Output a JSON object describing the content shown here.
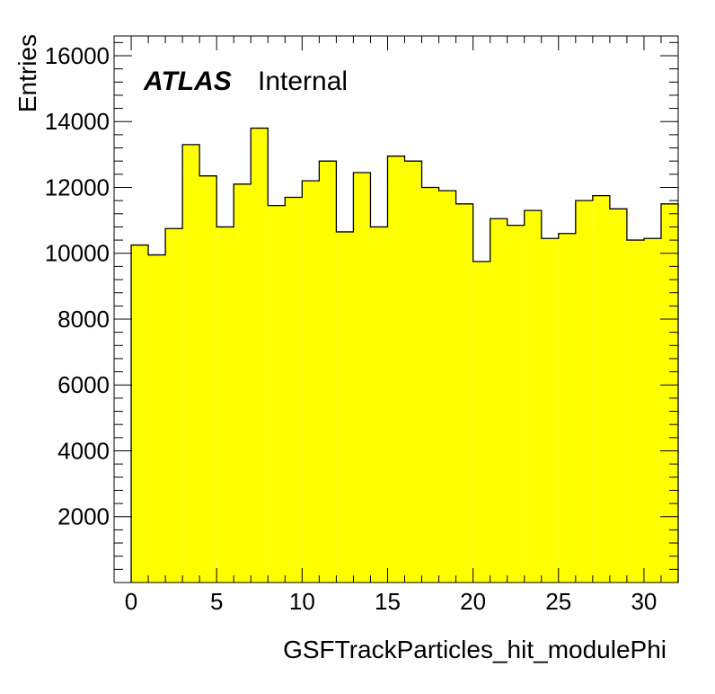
{
  "chart_data": {
    "type": "bar",
    "subtype": "histogram",
    "xlabel": "GSFTrackParticles_hit_modulePhi",
    "ylabel": "Entries",
    "label_bold": "ATLAS",
    "label_status": "Internal",
    "xlim": [
      -1,
      32
    ],
    "ylim": [
      0,
      16600
    ],
    "x_ticks": [
      0,
      5,
      10,
      15,
      20,
      25,
      30
    ],
    "y_ticks": [
      2000,
      4000,
      6000,
      8000,
      10000,
      12000,
      14000,
      16000
    ],
    "bin_edges_start": 0,
    "bin_width": 1,
    "values": [
      10250,
      9950,
      10750,
      13300,
      12350,
      10800,
      12100,
      13800,
      11450,
      11700,
      12200,
      12800,
      10650,
      12450,
      10800,
      12950,
      12800,
      12000,
      11900,
      11500,
      9750,
      11050,
      10850,
      11300,
      10450,
      10600,
      11600,
      11750,
      11350,
      10400,
      10450,
      11500
    ],
    "fill_color": "#ffff00",
    "line_color": "#000000",
    "grid": false
  }
}
